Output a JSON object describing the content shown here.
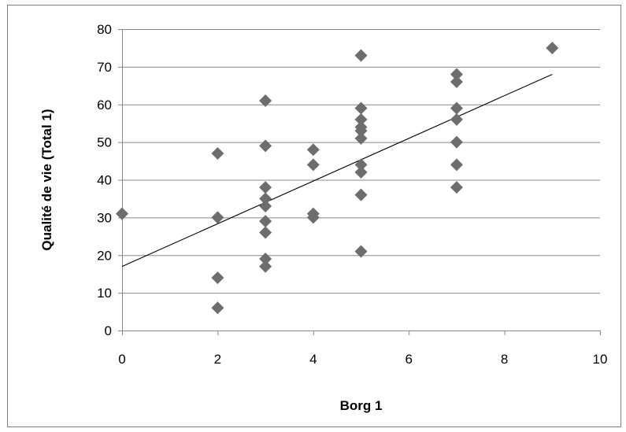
{
  "chart_data": {
    "type": "scatter",
    "title": "",
    "xlabel": "Borg 1",
    "ylabel": "Qualité de vie (Total 1)",
    "xlim": [
      0,
      10
    ],
    "ylim": [
      0,
      80
    ],
    "x_ticks": [
      0,
      2,
      4,
      6,
      8,
      10
    ],
    "y_ticks": [
      0,
      10,
      20,
      30,
      40,
      50,
      60,
      70,
      80
    ],
    "x_tick_labels": [
      "0",
      "2",
      "4",
      "6",
      "8",
      "10"
    ],
    "y_tick_labels": [
      "0",
      "10",
      "20",
      "30",
      "40",
      "50",
      "60",
      "70",
      "80"
    ],
    "grid": "horizontal",
    "legend": "none",
    "marker": "diamond",
    "marker_color": "#6d6d6d",
    "points": [
      {
        "x": 0,
        "y": 31
      },
      {
        "x": 2,
        "y": 47
      },
      {
        "x": 2,
        "y": 30
      },
      {
        "x": 2,
        "y": 14
      },
      {
        "x": 2,
        "y": 6
      },
      {
        "x": 3,
        "y": 61
      },
      {
        "x": 3,
        "y": 49
      },
      {
        "x": 3,
        "y": 38
      },
      {
        "x": 3,
        "y": 35
      },
      {
        "x": 3,
        "y": 33
      },
      {
        "x": 3,
        "y": 29
      },
      {
        "x": 3,
        "y": 26
      },
      {
        "x": 3,
        "y": 19
      },
      {
        "x": 3,
        "y": 17
      },
      {
        "x": 4,
        "y": 48
      },
      {
        "x": 4,
        "y": 44
      },
      {
        "x": 4,
        "y": 31
      },
      {
        "x": 4,
        "y": 30
      },
      {
        "x": 5,
        "y": 73
      },
      {
        "x": 5,
        "y": 59
      },
      {
        "x": 5,
        "y": 56
      },
      {
        "x": 5,
        "y": 54
      },
      {
        "x": 5,
        "y": 53
      },
      {
        "x": 5,
        "y": 51
      },
      {
        "x": 5,
        "y": 44
      },
      {
        "x": 5,
        "y": 42
      },
      {
        "x": 5,
        "y": 36
      },
      {
        "x": 5,
        "y": 21
      },
      {
        "x": 7,
        "y": 68
      },
      {
        "x": 7,
        "y": 66
      },
      {
        "x": 7,
        "y": 59
      },
      {
        "x": 7,
        "y": 56
      },
      {
        "x": 7,
        "y": 50
      },
      {
        "x": 7,
        "y": 44
      },
      {
        "x": 7,
        "y": 38
      },
      {
        "x": 9,
        "y": 75
      }
    ],
    "trendline": {
      "type": "linear",
      "from": {
        "x": 0,
        "y": 17
      },
      "to": {
        "x": 9,
        "y": 68
      },
      "color": "#000000"
    },
    "colors": {
      "grid": "#888888",
      "axis": "#888888",
      "frame_border": "#7f7f7f"
    }
  }
}
